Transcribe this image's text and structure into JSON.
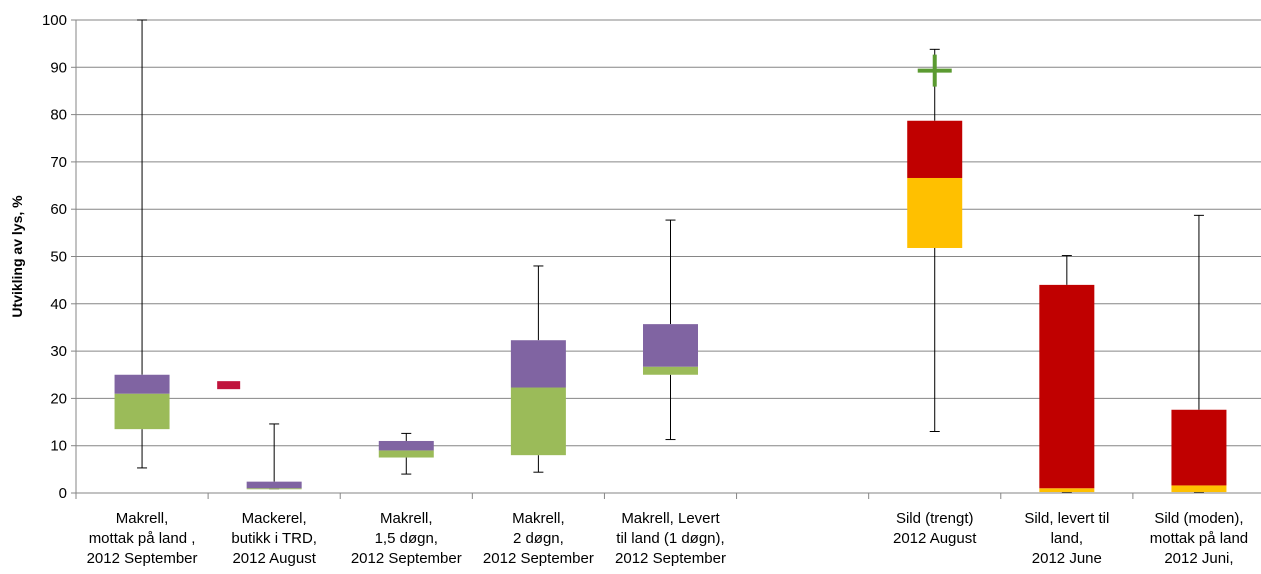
{
  "chart_data": {
    "type": "boxplot",
    "ylabel": "Utvikling av lys, %",
    "ylim": [
      0,
      100
    ],
    "yticks": [
      0,
      10,
      20,
      30,
      40,
      50,
      60,
      70,
      80,
      90,
      100
    ],
    "grid": "horizontal",
    "categories": [
      [
        "Makrell,",
        "mottak på land ,",
        "2012 September"
      ],
      [
        "Mackerel,",
        "butikk i TRD,",
        "2012  August"
      ],
      [
        "Makrell,",
        "1,5 døgn,",
        "2012 September"
      ],
      [
        "Makrell,",
        "2 døgn,",
        "2012 September"
      ],
      [
        "Makrell, Levert",
        "til land (1 døgn),",
        "2012 September"
      ],
      [
        "",
        "",
        ""
      ],
      [
        "Sild (trengt)",
        "2012   August",
        ""
      ],
      [
        "Sild, levert til",
        "land,",
        "2012 June"
      ],
      [
        "Sild (moden),",
        "mottak på land",
        "2012 Juni,"
      ]
    ],
    "boxes": [
      {
        "min": 5.3,
        "q1": 13.5,
        "median": 21,
        "q3": 25,
        "max": 100,
        "lower_color": "#9bbb59",
        "upper_color": "#8064a2"
      },
      {
        "min": 0.9,
        "q1": 0.9,
        "median": 1,
        "q3": 2.4,
        "max": 14.6,
        "lower_color": "#9bbb59",
        "upper_color": "#8064a2",
        "marker": {
          "type": "dash",
          "value": 22.8,
          "color": "#c0143c"
        }
      },
      {
        "min": 4,
        "q1": 7.5,
        "median": 9,
        "q3": 11,
        "max": 12.6,
        "lower_color": "#9bbb59",
        "upper_color": "#8064a2"
      },
      {
        "min": 4.4,
        "q1": 8,
        "median": 22.3,
        "q3": 32.3,
        "max": 48,
        "lower_color": "#9bbb59",
        "upper_color": "#8064a2"
      },
      {
        "min": 11.3,
        "q1": 25,
        "median": 26.7,
        "q3": 35.7,
        "max": 57.7,
        "lower_color": "#9bbb59",
        "upper_color": "#8064a2"
      },
      null,
      {
        "min": 13,
        "q1": 51.8,
        "median": 66.6,
        "q3": 78.7,
        "max": 93.8,
        "lower_color": "#ffc000",
        "upper_color": "#c00000",
        "marker": {
          "type": "plus",
          "value": 89.3,
          "color": "#5b9a31"
        }
      },
      {
        "min": 0.2,
        "q1": 0.2,
        "median": 1,
        "q3": 44,
        "max": 50.2,
        "lower_color": "#ffc000",
        "upper_color": "#c00000"
      },
      {
        "min": 0.2,
        "q1": 0.2,
        "median": 1.6,
        "q3": 17.6,
        "max": 58.7,
        "lower_color": "#ffc000",
        "upper_color": "#c00000"
      }
    ]
  }
}
